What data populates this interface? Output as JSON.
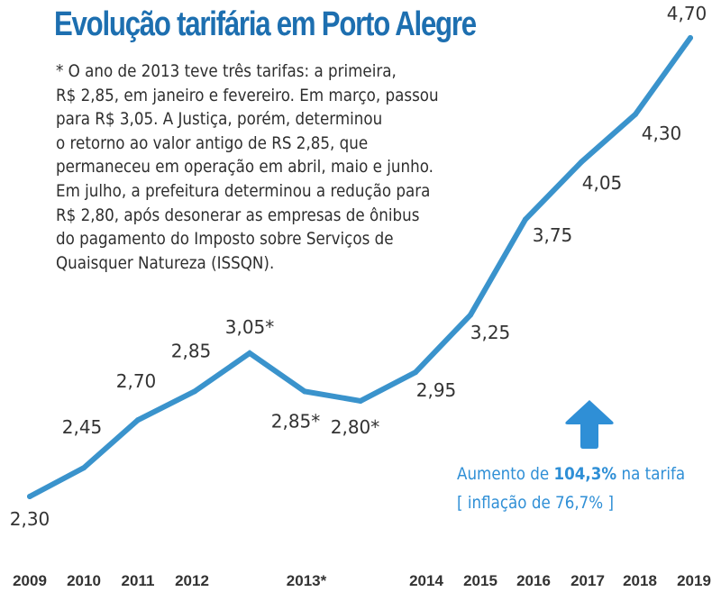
{
  "chart_data": {
    "type": "line",
    "title": "Evolução tarifária em Porto Alegre",
    "xlabel": "",
    "ylabel": "",
    "ylim": [
      2.2,
      4.8
    ],
    "grid": false,
    "legend": "none",
    "series_color": "#3a93cc",
    "points": [
      {
        "x_label": "2009",
        "value": 2.3,
        "label": "2,30",
        "label_pos": "below"
      },
      {
        "x_label": "2010",
        "value": 2.45,
        "label": "2,45",
        "label_pos": "above"
      },
      {
        "x_label": "2011",
        "value": 2.7,
        "label": "2,70",
        "label_pos": "above"
      },
      {
        "x_label": "2012",
        "value": 2.85,
        "label": "2,85",
        "label_pos": "above"
      },
      {
        "x_label": "2013* (mar)",
        "value": 3.05,
        "label": "3,05*",
        "label_pos": "above"
      },
      {
        "x_label": "2013* (abr-jun)",
        "value": 2.85,
        "label": "2,85*",
        "label_pos": "below"
      },
      {
        "x_label": "2013* (jul)",
        "value": 2.8,
        "label": "2,80*",
        "label_pos": "below"
      },
      {
        "x_label": "2014",
        "value": 2.95,
        "label": "2,95",
        "label_pos": "below"
      },
      {
        "x_label": "2015",
        "value": 3.25,
        "label": "3,25",
        "label_pos": "below"
      },
      {
        "x_label": "2016",
        "value": 3.75,
        "label": "3,75",
        "label_pos": "below"
      },
      {
        "x_label": "2017",
        "value": 4.05,
        "label": "4,05",
        "label_pos": "below"
      },
      {
        "x_label": "2018",
        "value": 4.3,
        "label": "4,30",
        "label_pos": "below"
      },
      {
        "x_label": "2019",
        "value": 4.7,
        "label": "4,70",
        "label_pos": "above"
      }
    ],
    "x_tick_labels": [
      "2009",
      "2010",
      "2011",
      "2012",
      "2013*",
      "2014",
      "2015",
      "2016",
      "2017",
      "2018",
      "2019"
    ],
    "annotations": {
      "note_lines": [
        "* O ano de 2013 teve três tarifas: a primeira,",
        "R$ 2,85, em janeiro e fevereiro. Em março, passou",
        "para R$ 3,05. A Justiça, porém, determinou",
        "o retorno ao valor antigo de RS 2,85, que",
        "permaneceu em operação em abril, maio e junho.",
        "Em julho, a prefeitura determinou a redução para",
        "R$ 2,80, após desonerar as empresas de ônibus",
        "do pagamento do Imposto sobre Serviços de",
        "Quaisquer Natureza (ISSQN)."
      ],
      "increase_prefix": "Aumento de ",
      "increase_value": "104,3%",
      "increase_suffix": " na tarifa",
      "inflation": "[ inflação de 76,7% ]",
      "arrow_icon": "up-arrow-icon"
    }
  }
}
